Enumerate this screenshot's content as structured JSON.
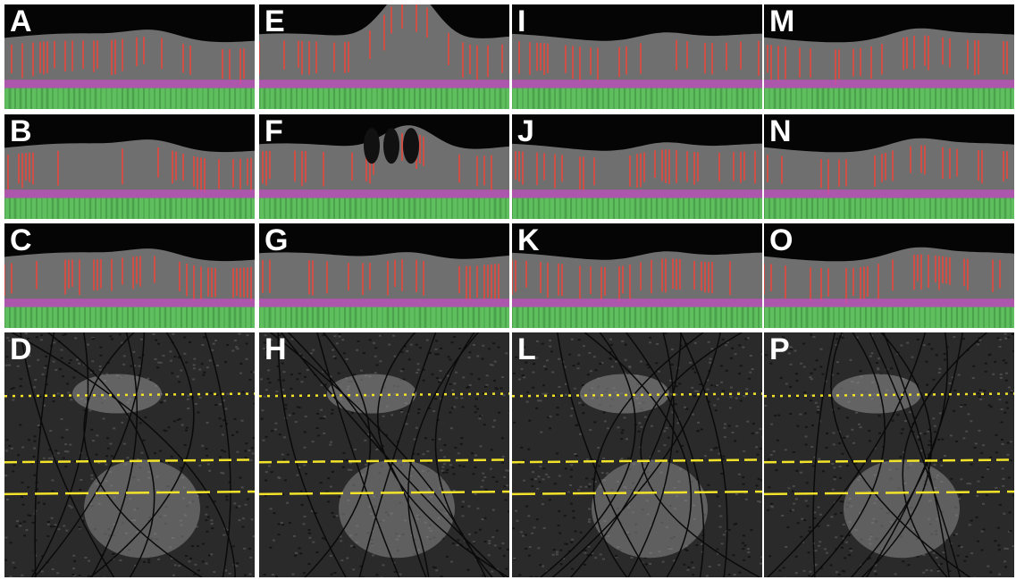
{
  "panels": [
    {
      "label": "A"
    },
    {
      "label": "B"
    },
    {
      "label": "C"
    },
    {
      "label": "D"
    },
    {
      "label": "E"
    },
    {
      "label": "F"
    },
    {
      "label": "G"
    },
    {
      "label": "H"
    },
    {
      "label": "I"
    },
    {
      "label": "J"
    },
    {
      "label": "K"
    },
    {
      "label": "L"
    },
    {
      "label": "M"
    },
    {
      "label": "N"
    },
    {
      "label": "O"
    },
    {
      "label": "P"
    }
  ]
}
